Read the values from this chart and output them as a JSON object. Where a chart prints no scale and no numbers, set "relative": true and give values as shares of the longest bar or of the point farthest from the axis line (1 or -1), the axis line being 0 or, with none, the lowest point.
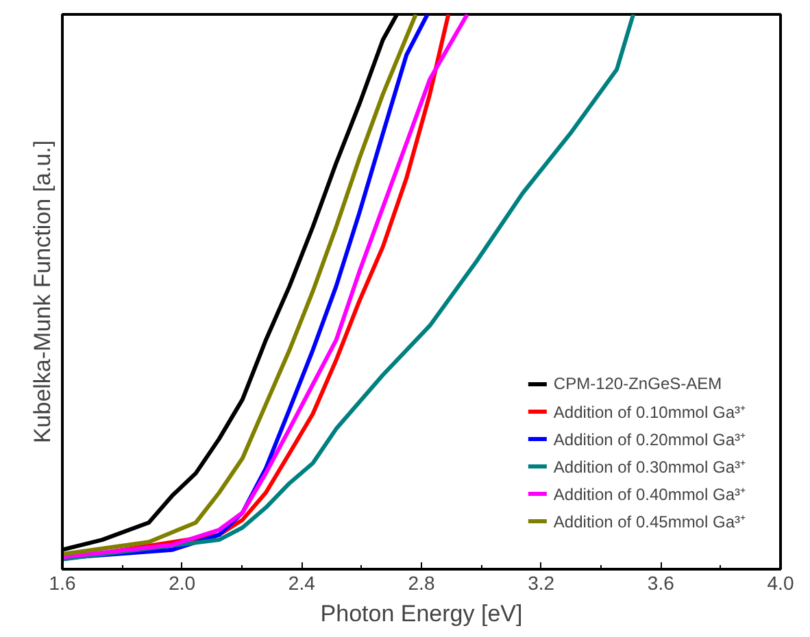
{
  "chart_data": {
    "type": "line",
    "relative": true,
    "xlabel": "Photon Energy [eV]",
    "ylabel": "Kubelka-Munk Function [a.u.]",
    "xlim": [
      1.6,
      4.0
    ],
    "xticks": [
      {
        "value": 1.6,
        "label": "1.6"
      },
      {
        "value": 2.0,
        "label": "2.0"
      },
      {
        "value": 2.4,
        "label": "2.4"
      },
      {
        "value": 2.8,
        "label": "2.8"
      },
      {
        "value": 3.2,
        "label": "3.2"
      },
      {
        "value": 3.6,
        "label": "3.6"
      },
      {
        "value": 4.0,
        "label": "4.0"
      }
    ],
    "grid": false,
    "legend": "bottom right",
    "marker": "none",
    "line_style": "solid",
    "series": [
      {
        "name": "CPM-120-ZnGeS-AEM",
        "color": "#000000",
        "x": [
          1.6,
          1.733,
          1.889,
          1.968,
          2.046,
          2.124,
          2.202,
          2.28,
          2.359,
          2.437,
          2.515,
          2.593,
          2.671,
          2.718
        ],
        "values": [
          0.035,
          0.053,
          0.084,
          0.133,
          0.173,
          0.235,
          0.306,
          0.413,
          0.51,
          0.617,
          0.732,
          0.839,
          0.954,
          1.0
        ]
      },
      {
        "name": "Addition of 0.10mmol Ga³⁺",
        "color": "#ff0000",
        "x": [
          1.6,
          2.124,
          2.202,
          2.28,
          2.359,
          2.437,
          2.515,
          2.593,
          2.671,
          2.75,
          2.828,
          2.89
        ],
        "values": [
          0.018,
          0.062,
          0.089,
          0.138,
          0.209,
          0.28,
          0.377,
          0.484,
          0.581,
          0.705,
          0.856,
          1.0
        ]
      },
      {
        "name": "Addition of 0.20mmol Ga³⁺",
        "color": "#0000ff",
        "x": [
          1.6,
          1.968,
          2.124,
          2.202,
          2.28,
          2.359,
          2.437,
          2.515,
          2.593,
          2.671,
          2.75,
          2.82
        ],
        "values": [
          0.02,
          0.035,
          0.062,
          0.102,
          0.182,
          0.288,
          0.395,
          0.51,
          0.643,
          0.785,
          0.927,
          1.0
        ]
      },
      {
        "name": "Addition of 0.30mmol Ga³⁺",
        "color": "#008080",
        "x": [
          1.6,
          2.124,
          2.202,
          2.28,
          2.359,
          2.437,
          2.515,
          2.671,
          2.828,
          2.984,
          3.14,
          3.297,
          3.453,
          3.508
        ],
        "values": [
          0.018,
          0.053,
          0.075,
          0.111,
          0.155,
          0.191,
          0.253,
          0.35,
          0.439,
          0.555,
          0.679,
          0.785,
          0.901,
          1.0
        ]
      },
      {
        "name": "Addition of 0.40mmol Ga³⁺",
        "color": "#ff00ff",
        "x": [
          1.6,
          1.968,
          2.124,
          2.202,
          2.28,
          2.359,
          2.437,
          2.515,
          2.593,
          2.671,
          2.75,
          2.828,
          2.953
        ],
        "values": [
          0.022,
          0.044,
          0.071,
          0.102,
          0.173,
          0.253,
          0.333,
          0.413,
          0.537,
          0.652,
          0.768,
          0.883,
          1.0
        ]
      },
      {
        "name": "Addition of 0.45mmol Ga³⁺",
        "color": "#808000",
        "x": [
          1.6,
          1.889,
          2.046,
          2.124,
          2.202,
          2.28,
          2.359,
          2.437,
          2.515,
          2.593,
          2.671,
          2.781
        ],
        "values": [
          0.027,
          0.049,
          0.084,
          0.138,
          0.2,
          0.297,
          0.395,
          0.501,
          0.617,
          0.741,
          0.856,
          1.0
        ]
      }
    ]
  }
}
